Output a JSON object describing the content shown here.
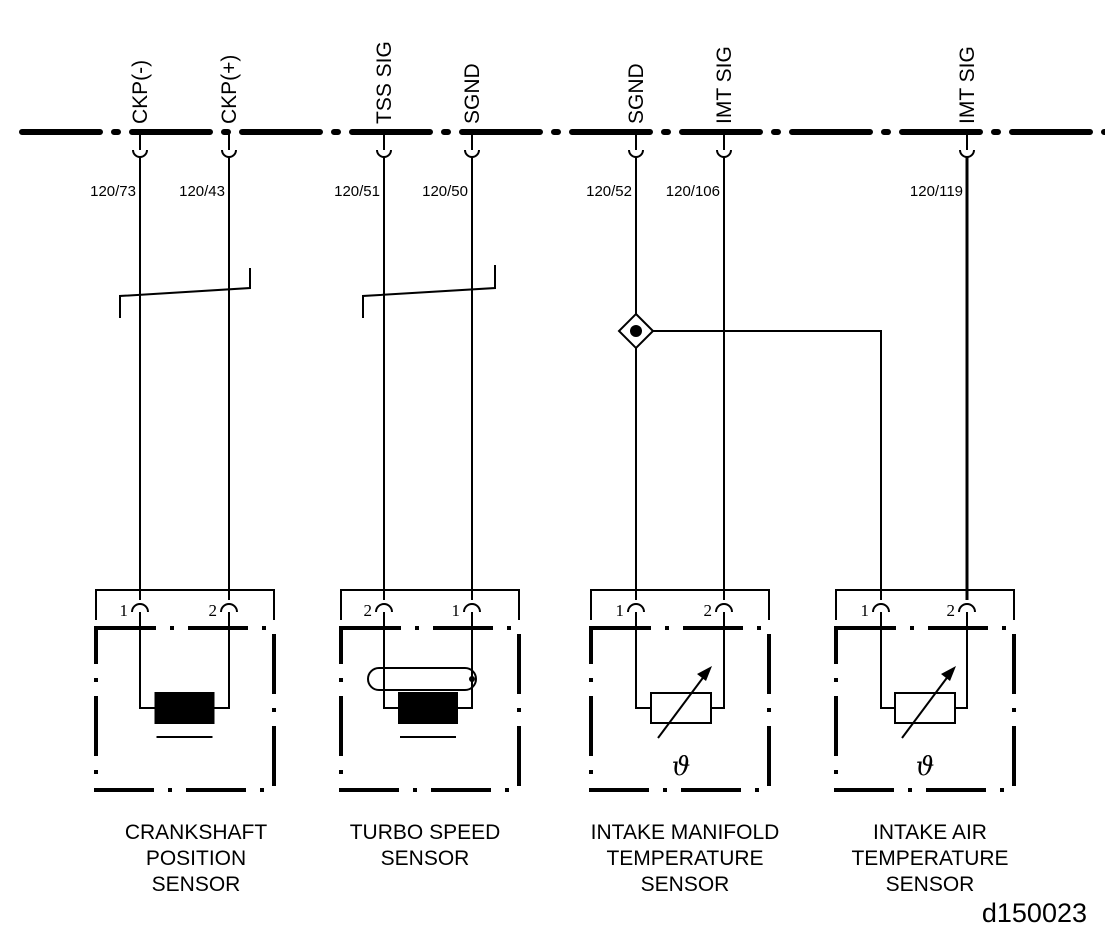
{
  "circuits": [
    {
      "signal": "CKP(-)",
      "pin": "120/73"
    },
    {
      "signal": "CKP(+)",
      "pin": "120/43"
    },
    {
      "signal": "TSS SIG",
      "pin": "120/51"
    },
    {
      "signal": "SGND",
      "pin": "120/50"
    },
    {
      "signal": "SGND",
      "pin": "120/52"
    },
    {
      "signal": "IMT SIG",
      "pin": "120/106"
    },
    {
      "signal": "IMT SIG",
      "pin": "120/119"
    }
  ],
  "sensors": [
    {
      "name_lines": [
        "CRANKSHAFT",
        "POSITION",
        "SENSOR"
      ],
      "pins": [
        "1",
        "2"
      ],
      "symbol": "inductive-coil"
    },
    {
      "name_lines": [
        "TURBO SPEED",
        "SENSOR"
      ],
      "pins": [
        "2",
        "1"
      ],
      "symbol": "inductive-coil-shielded"
    },
    {
      "name_lines": [
        "INTAKE MANIFOLD",
        "TEMPERATURE",
        "SENSOR"
      ],
      "pins": [
        "1",
        "2"
      ],
      "symbol": "thermistor",
      "symbol_label": "ϑ"
    },
    {
      "name_lines": [
        "INTAKE AIR",
        "TEMPERATURE",
        "SENSOR"
      ],
      "pins": [
        "1",
        "2"
      ],
      "symbol": "thermistor",
      "symbol_label": "ϑ"
    }
  ],
  "figure_id": "d150023"
}
